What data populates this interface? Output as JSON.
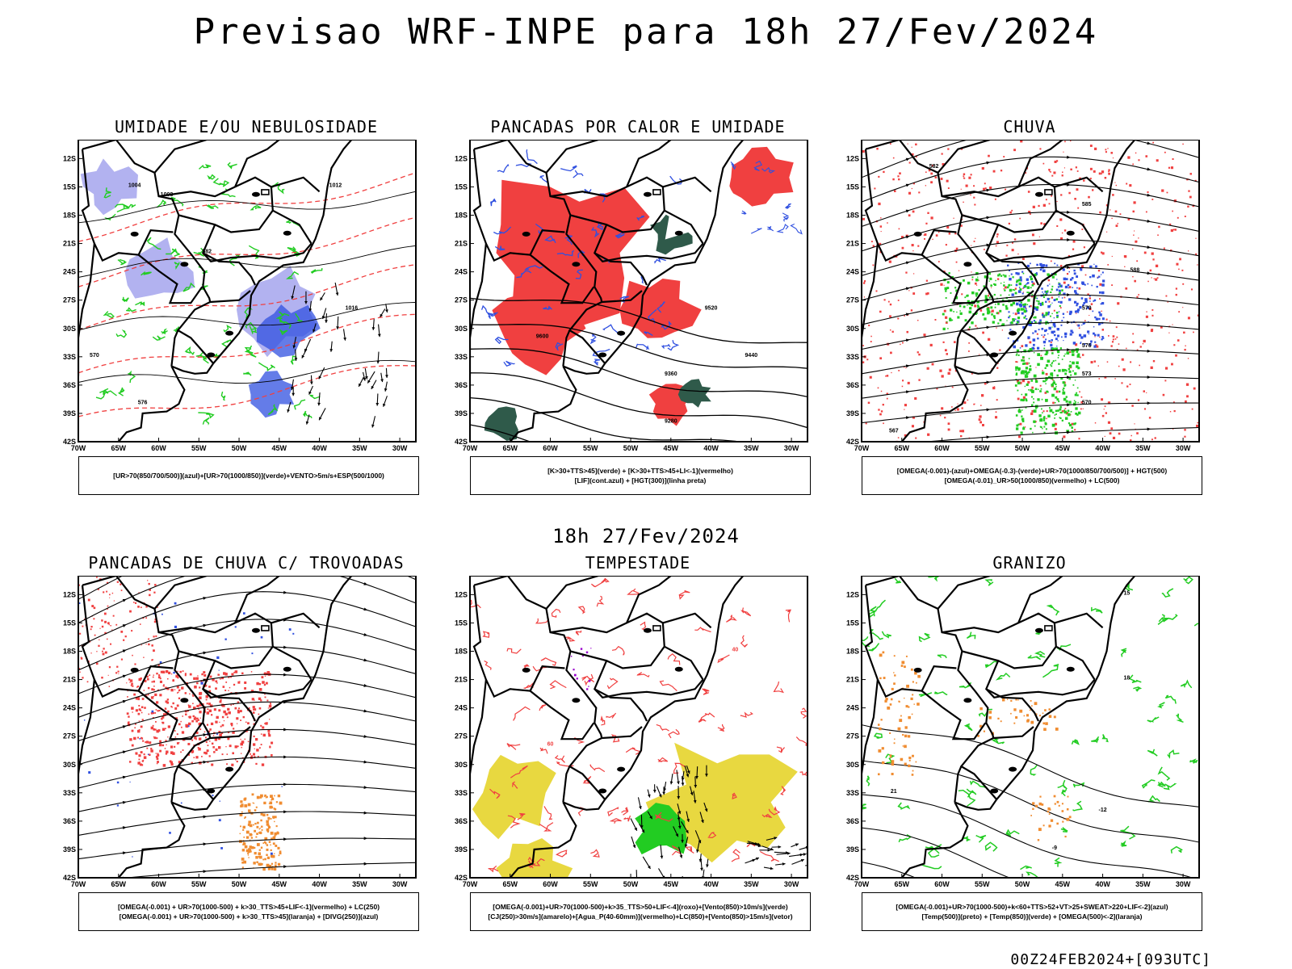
{
  "header": {
    "title": "Previsao WRF-INPE  para 18h 27/Fev/2024",
    "subtitle": "18h 27/Fev/2024",
    "footer": "00Z24FEB2024+[093UTC]"
  },
  "colors": {
    "red": "#f04040",
    "blue": "#3050e0",
    "lightblue": "#aaaaee",
    "green": "#22cc22",
    "darkgreen": "#2f5a4a",
    "yellow": "#e8d840",
    "orange": "#f08c30",
    "purple": "#9900cc",
    "black": "#000000"
  },
  "axes": {
    "lat_labels": [
      "12S",
      "15S",
      "18S",
      "21S",
      "24S",
      "27S",
      "30S",
      "33S",
      "36S",
      "39S",
      "42S"
    ],
    "lon_labels": [
      "70W",
      "65W",
      "60W",
      "55W",
      "50W",
      "45W",
      "40W",
      "35W",
      "30W"
    ],
    "lat_values": [
      -12,
      -15,
      -18,
      -21,
      -24,
      -27,
      -30,
      -33,
      -36,
      -39,
      -42
    ],
    "lon_values": [
      -70,
      -65,
      -60,
      -55,
      -50,
      -45,
      -40,
      -35,
      -30
    ],
    "lon_range": [
      -70,
      -28
    ],
    "lat_range": [
      -42,
      -10
    ]
  },
  "panels": [
    {
      "title": "UMIDADE E/OU NEBULOSIDADE",
      "legend": [
        "[UR>70(850/700/500)](azul)+[UR>70(1000/850)](verde)+VENTO>5m/s+ESP(500/1000)"
      ],
      "labels": [
        "1004",
        "1008",
        "1012",
        "1016",
        "570",
        "576",
        "582"
      ]
    },
    {
      "title": "PANCADAS POR CALOR E UMIDADE",
      "legend": [
        "[K>30+TTS>45](verde)  +  [K>30+TTS>45+LI<-1](vermelho)",
        "[LIF](cont.azul)  +  [HGT(300)](linha preta)"
      ],
      "labels": [
        "9600",
        "9520",
        "9440",
        "9360",
        "9280"
      ]
    },
    {
      "title": "CHUVA",
      "legend": [
        "[OMEGA(-0.001)-(azul)+OMEGA(-0.3)-(verde)+UR>70(1000/850/700/500)]  +  HGT(500)",
        "[OMEGA(-0.01)_UR>50(1000/850)(vermelho)  +  LC(500)"
      ],
      "labels": [
        "582",
        "585",
        "588",
        "579",
        "576",
        "573",
        "570",
        "567"
      ]
    },
    {
      "title": "PANCADAS DE CHUVA C/ TROVOADAS",
      "legend": [
        "[OMEGA(-0.001)  +  UR>70(1000-500)  +  k>30_TTS>45+LIF<-1](vermelho)  +  LC(250)",
        "[OMEGA(-0.001)  +  UR>70(1000-500)  +  k>30_TTS>45](laranja)  +  [DIVG(250)](azul)"
      ],
      "labels": []
    },
    {
      "title": "TEMPESTADE",
      "legend": [
        "[OMEGA(-0.001)+UR>70(1000-500)+k>35_TTS>50+LIF<-4](roxo)+[Vento(850)>10m/s](verde)",
        "[CJ(250)>30m/s](amarelo)+[Agua_P(40-60mm)](vermelho)+LC(850)+[Vento(850)>15m/s](vetor)"
      ],
      "labels": [
        "40",
        "60"
      ]
    },
    {
      "title": "GRANIZO",
      "legend": [
        "[OMEGA(-0.001)+UR>70(1000-500)+k<60+TTS>52+VT>25+SWEAT>220+LIF<-2](azul)",
        "[Temp(500)](preto)  +  [Temp(850)](verde)  +  [OMEGA(500)<-2](laranja)"
      ],
      "labels": [
        "-12",
        "-9",
        "15",
        "18",
        "21"
      ]
    }
  ]
}
